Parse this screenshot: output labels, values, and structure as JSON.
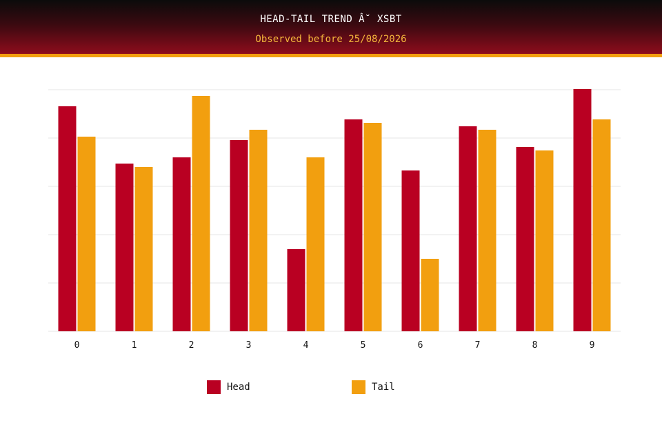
{
  "chart_data": {
    "type": "bar",
    "title": "HEAD-TAIL TREND Â˘ XSBT",
    "subtitle": "Observed before 25/08/2026",
    "categories": [
      "0",
      "1",
      "2",
      "3",
      "4",
      "5",
      "6",
      "7",
      "8",
      "9"
    ],
    "series": [
      {
        "name": "Head",
        "color": "#b90022",
        "values": [
          326,
          243,
          252,
          277,
          119,
          307,
          233,
          297,
          267,
          351
        ]
      },
      {
        "name": "Tail",
        "color": "#f29f0f",
        "values": [
          282,
          238,
          341,
          292,
          252,
          302,
          105,
          292,
          262,
          307
        ]
      }
    ],
    "ylim": [
      0,
      350
    ],
    "grid": true,
    "legend_position": "bottom"
  }
}
